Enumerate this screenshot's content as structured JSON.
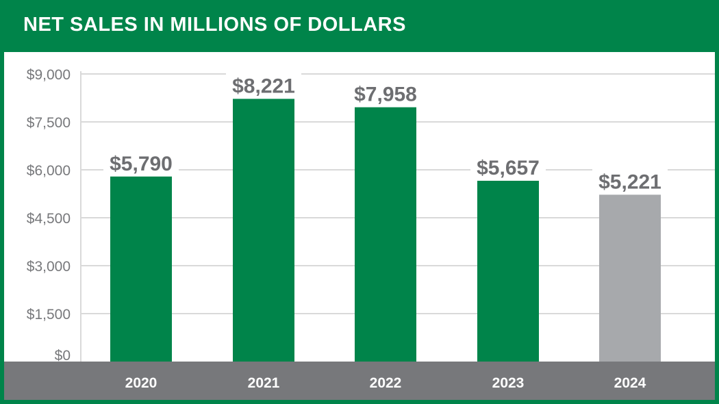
{
  "chart_data": {
    "type": "bar",
    "title": "NET SALES IN MILLIONS OF DOLLARS",
    "categories": [
      "2020",
      "2021",
      "2022",
      "2023",
      "2024"
    ],
    "values": [
      5790,
      8221,
      7958,
      5657,
      5221
    ],
    "data_labels": [
      "$5,790",
      "$8,221",
      "$7,958",
      "$5,657",
      "$5,221"
    ],
    "bar_colors": [
      "#00844a",
      "#00844a",
      "#00844a",
      "#00844a",
      "#a7a9ac"
    ],
    "ylim": [
      0,
      9000
    ],
    "yticks": [
      0,
      1500,
      3000,
      4500,
      6000,
      7500,
      9000
    ],
    "ytick_labels": [
      "$0",
      "$1,500",
      "$3,000",
      "$4,500",
      "$6,000",
      "$7,500",
      "$9,000"
    ],
    "xlabel": "",
    "ylabel": "",
    "grid": true,
    "legend": "none"
  },
  "colors": {
    "brand_green": "#00844a",
    "axis_band": "#77787b",
    "highlight_gray": "#a7a9ac",
    "gridline": "#d9d9d9",
    "label_text": "#6d6e71"
  }
}
